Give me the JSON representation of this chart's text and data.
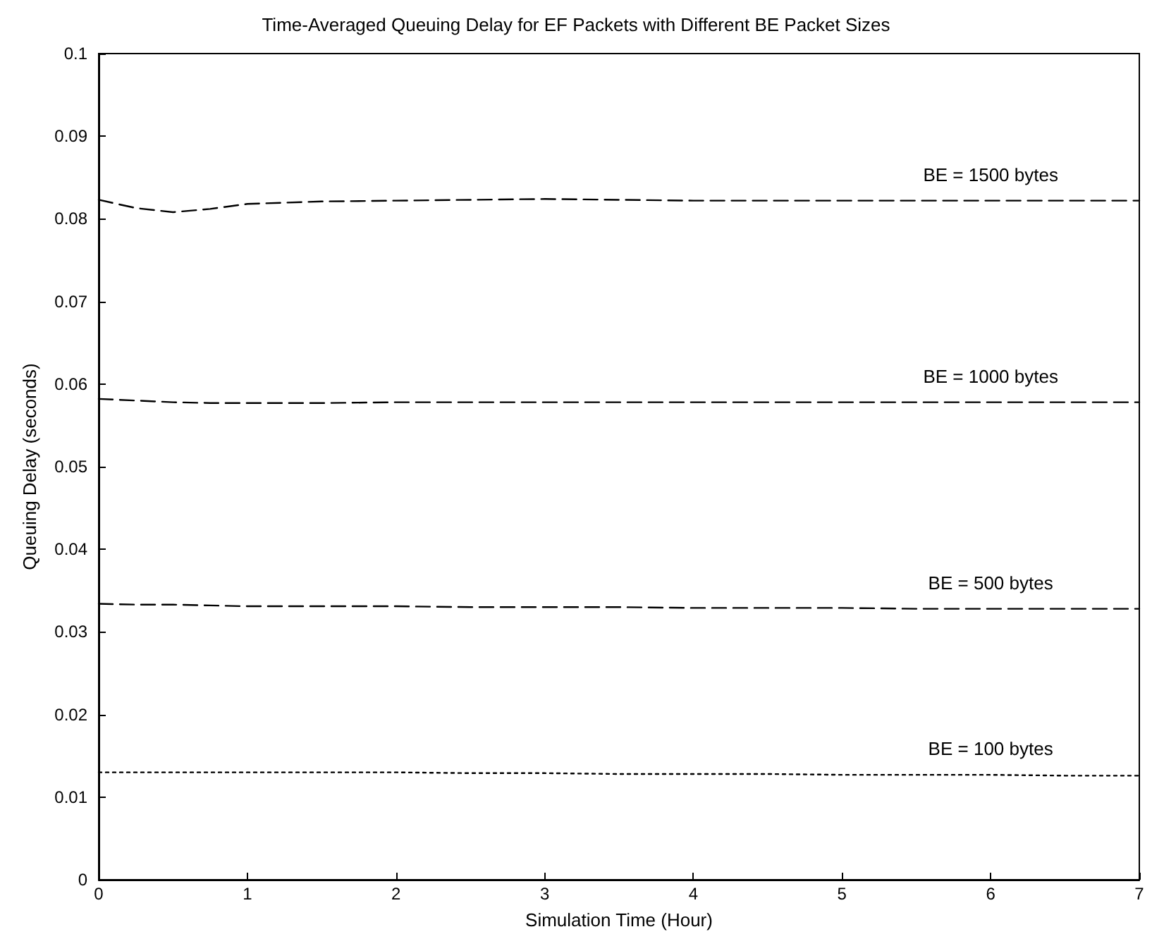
{
  "chart_data": {
    "type": "line",
    "title": "Time-Averaged Queuing Delay for EF Packets with Different BE Packet Sizes",
    "xlabel": "Simulation Time (Hour)",
    "ylabel": "Queuing Delay (seconds)",
    "x": [
      0,
      0.25,
      0.5,
      0.75,
      1,
      1.5,
      2,
      2.5,
      3,
      3.5,
      4,
      4.5,
      5,
      5.5,
      6,
      6.5,
      7
    ],
    "series": [
      {
        "name": "BE = 1500 bytes",
        "color": "#000000",
        "line_style": "dashed",
        "values": [
          0.0823,
          0.0813,
          0.0808,
          0.0812,
          0.0818,
          0.0821,
          0.0822,
          0.0823,
          0.0824,
          0.0823,
          0.0822,
          0.0822,
          0.0822,
          0.0822,
          0.0822,
          0.0822,
          0.0822
        ]
      },
      {
        "name": "BE = 1000 bytes",
        "color": "#000000",
        "line_style": "dashed",
        "values": [
          0.0582,
          0.058,
          0.0578,
          0.0577,
          0.0577,
          0.0577,
          0.0578,
          0.0578,
          0.0578,
          0.0578,
          0.0578,
          0.0578,
          0.0578,
          0.0578,
          0.0578,
          0.0578,
          0.0578
        ]
      },
      {
        "name": "BE = 500 bytes",
        "color": "#000000",
        "line_style": "dashed",
        "values": [
          0.0334,
          0.0333,
          0.0333,
          0.0332,
          0.0331,
          0.0331,
          0.0331,
          0.033,
          0.033,
          0.033,
          0.0329,
          0.0329,
          0.0329,
          0.0328,
          0.0328,
          0.0328,
          0.0328
        ]
      },
      {
        "name": "BE = 100 bytes",
        "color": "#000000",
        "line_style": "dotted",
        "values": [
          0.013,
          0.013,
          0.013,
          0.013,
          0.013,
          0.013,
          0.013,
          0.0129,
          0.0129,
          0.0128,
          0.0128,
          0.0128,
          0.0127,
          0.0127,
          0.0127,
          0.0126,
          0.0126
        ]
      }
    ],
    "xlim": [
      0,
      7
    ],
    "xticks": [
      0,
      1,
      2,
      3,
      4,
      5,
      6,
      7
    ],
    "ylim": [
      0,
      0.1
    ],
    "yticks": [
      0,
      0.01,
      0.02,
      0.03,
      0.04,
      0.05,
      0.06,
      0.07,
      0.08,
      0.09,
      0.1
    ],
    "grid": false,
    "legend": false,
    "marker": "none"
  }
}
